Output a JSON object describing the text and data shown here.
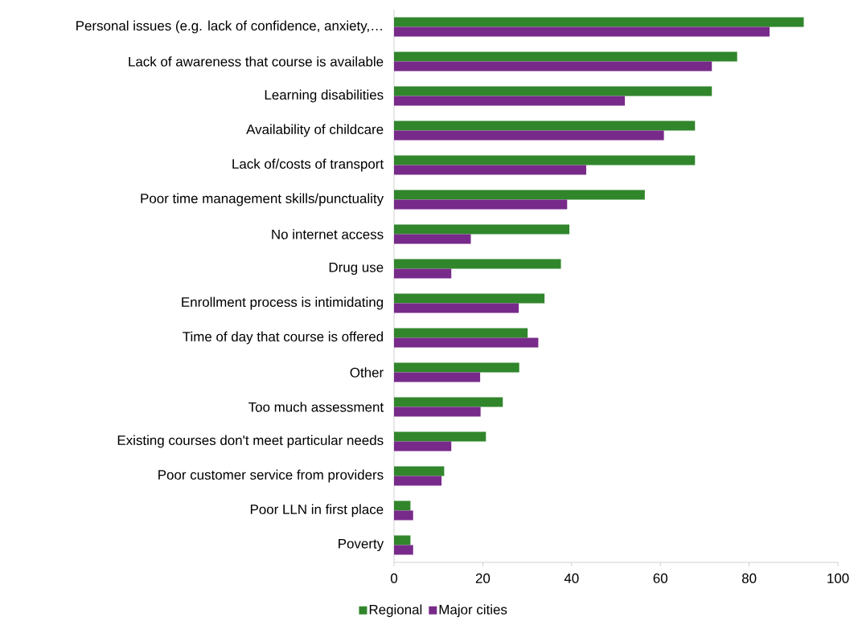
{
  "chart_data": {
    "type": "bar",
    "orientation": "horizontal",
    "categories": [
      "Personal issues (e.g. lack of confidence, anxiety,…",
      "Lack of awareness that course is available",
      "Learning disabilities",
      "Availability of childcare",
      "Lack of/costs of transport",
      "Poor time management skills/punctuality",
      "No internet access",
      "Drug use",
      "Enrollment process is intimidating",
      "Time of day that course is offered",
      "Other",
      "Too much assessment",
      "Existing courses don't meet particular needs",
      "Poor customer service from providers",
      "Poor LLN in first place",
      "Poverty"
    ],
    "series": [
      {
        "name": "Regional",
        "color": "#31862c",
        "values": [
          92.3,
          77.3,
          71.6,
          67.8,
          67.8,
          56.5,
          39.5,
          37.6,
          33.9,
          30.1,
          28.2,
          24.5,
          20.7,
          11.3,
          3.7,
          3.7
        ]
      },
      {
        "name": "Major cities",
        "color": "#782a8a",
        "values": [
          84.6,
          71.6,
          52.0,
          60.8,
          43.3,
          39.0,
          17.3,
          12.9,
          28.1,
          32.5,
          19.4,
          19.5,
          12.9,
          10.7,
          4.3,
          4.3
        ]
      }
    ],
    "xlim": [
      0,
      100
    ],
    "xticks": [
      0,
      20,
      40,
      60,
      80,
      100
    ],
    "legend": "bottom"
  }
}
